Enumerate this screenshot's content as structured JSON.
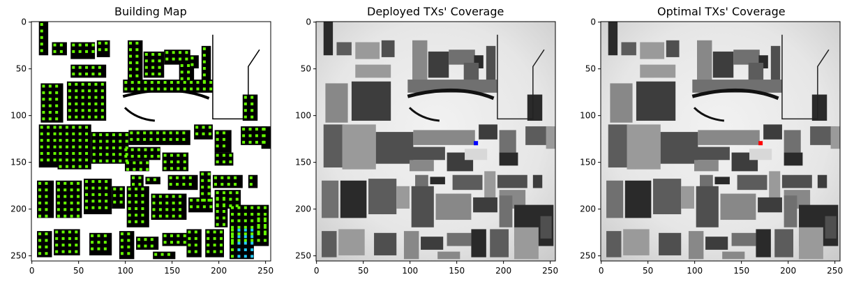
{
  "figure": {
    "panels": [
      {
        "title": "Building Map"
      },
      {
        "title": "Deployed TXs' Coverage"
      },
      {
        "title": "Optimal TXs' Coverage"
      }
    ]
  },
  "chart_data": [
    {
      "type": "heatmap",
      "title": "Building Map",
      "xlim": [
        0,
        255
      ],
      "ylim": [
        255,
        0
      ],
      "xticks": [
        0,
        50,
        100,
        150,
        200,
        250
      ],
      "yticks": [
        0,
        50,
        100,
        150,
        200,
        250
      ],
      "xlabel": "",
      "ylabel": "",
      "colors": {
        "building": "#000000",
        "free": "#ffffff",
        "candidate": "#66ff00",
        "candidate_alt": "#22ccff"
      }
    },
    {
      "type": "heatmap",
      "title": "Deployed TXs' Coverage",
      "xlim": [
        0,
        255
      ],
      "ylim": [
        255,
        0
      ],
      "xticks": [
        0,
        50,
        100,
        150,
        200,
        250
      ],
      "yticks": [
        0,
        50,
        100,
        150,
        200,
        250
      ],
      "xlabel": "",
      "ylabel": "",
      "transmitter": {
        "x": 171,
        "y": 130,
        "color": "#0000ff"
      }
    },
    {
      "type": "heatmap",
      "title": "Optimal TXs' Coverage",
      "xlim": [
        0,
        255
      ],
      "ylim": [
        255,
        0
      ],
      "xticks": [
        0,
        50,
        100,
        150,
        200,
        250
      ],
      "yticks": [
        0,
        50,
        100,
        150,
        200,
        250
      ],
      "xlabel": "",
      "ylabel": "",
      "transmitter": {
        "x": 171,
        "y": 130,
        "color": "#ff0000"
      }
    }
  ]
}
